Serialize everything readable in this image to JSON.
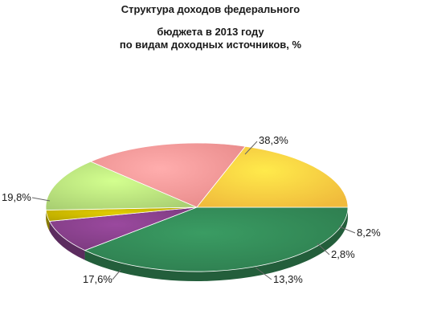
{
  "chart_data": {
    "type": "pie",
    "title_lines": [
      "Структура доходов федерального",
      "бюджета в 2013 году",
      "по видам доходных источников, %"
    ],
    "slices": [
      {
        "label": "38,3%",
        "value": 38.3,
        "color": "#2e7d4f"
      },
      {
        "label": "8,2%",
        "value": 8.2,
        "color": "#7b3a7e"
      },
      {
        "label": "2,8%",
        "value": 2.8,
        "color": "#b5a400"
      },
      {
        "label": "13,3%",
        "value": 13.3,
        "color": "#a9cf72"
      },
      {
        "label": "17,6%",
        "value": 17.6,
        "color": "#e88a8a"
      },
      {
        "label": "19,8%",
        "value": 19.8,
        "color": "#f0bb3c"
      }
    ],
    "legend": "none",
    "three_d": true
  }
}
